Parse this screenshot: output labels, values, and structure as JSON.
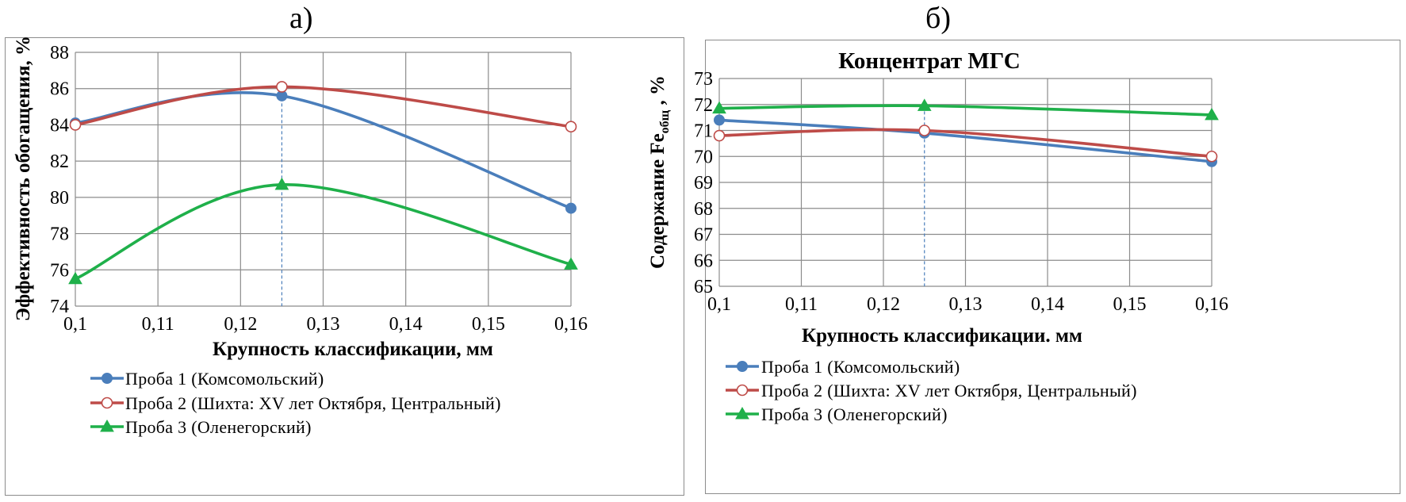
{
  "panel_labels": {
    "a": "а)",
    "b": "б)"
  },
  "chart_data": [
    {
      "type": "line",
      "title": "",
      "xlabel": "Крупность классификации, мм",
      "ylabel": "Эффективность обогащения, %",
      "x": [
        0.1,
        0.125,
        0.16
      ],
      "xticks": [
        0.1,
        0.11,
        0.12,
        0.13,
        0.14,
        0.15,
        0.16
      ],
      "xtick_labels": [
        "0,1",
        "0,11",
        "0,12",
        "0,13",
        "0,14",
        "0,15",
        "0,16"
      ],
      "xlim": [
        0.1,
        0.16
      ],
      "yticks": [
        74,
        76,
        78,
        80,
        82,
        84,
        86,
        88
      ],
      "ytick_labels": [
        "74",
        "76",
        "78",
        "80",
        "82",
        "84",
        "86",
        "88"
      ],
      "ylim": [
        74,
        88
      ],
      "grid": true,
      "reference_line_x": 0.125,
      "series": [
        {
          "name": "Проба 1 (Комсомольский)",
          "color": "#4a7ebb",
          "marker": "circle",
          "values": [
            84.1,
            85.6,
            79.4
          ]
        },
        {
          "name": "Проба 2 (Шихта: XV лет Октября, Центральный)",
          "color": "#be4b48",
          "marker": "open-circle",
          "values": [
            84.0,
            86.1,
            83.9
          ]
        },
        {
          "name": "Проба 3 (Оленегорский)",
          "color": "#1fb04a",
          "marker": "triangle",
          "values": [
            75.5,
            80.7,
            76.3
          ]
        }
      ]
    },
    {
      "type": "line",
      "title": "Концентрат МГС",
      "xlabel": "Крупность классификации. мм",
      "ylabel_main": "Содержание  Fe",
      "ylabel_sub": "общ",
      "ylabel_tail": " , %",
      "x": [
        0.1,
        0.125,
        0.16
      ],
      "xticks": [
        0.1,
        0.11,
        0.12,
        0.13,
        0.14,
        0.15,
        0.16
      ],
      "xtick_labels": [
        "0,1",
        "0,11",
        "0,12",
        "0,13",
        "0,14",
        "0,15",
        "0,16"
      ],
      "xlim": [
        0.1,
        0.16
      ],
      "yticks": [
        65,
        66,
        67,
        68,
        69,
        70,
        71,
        72,
        73
      ],
      "ytick_labels": [
        "65",
        "66",
        "67",
        "68",
        "69",
        "70",
        "71",
        "72",
        "73"
      ],
      "ylim": [
        65,
        73
      ],
      "grid": true,
      "reference_line_x": 0.125,
      "series": [
        {
          "name": "Проба 1 (Комсомольский)",
          "color": "#4a7ebb",
          "marker": "circle",
          "values": [
            71.4,
            70.9,
            69.8
          ]
        },
        {
          "name": "Проба 2 (Шихта: XV лет Октября, Центральный)",
          "color": "#be4b48",
          "marker": "open-circle",
          "values": [
            70.8,
            71.0,
            70.0
          ]
        },
        {
          "name": "Проба 3 (Оленегорский)",
          "color": "#1fb04a",
          "marker": "triangle",
          "values": [
            71.85,
            71.95,
            71.6
          ]
        }
      ]
    }
  ]
}
